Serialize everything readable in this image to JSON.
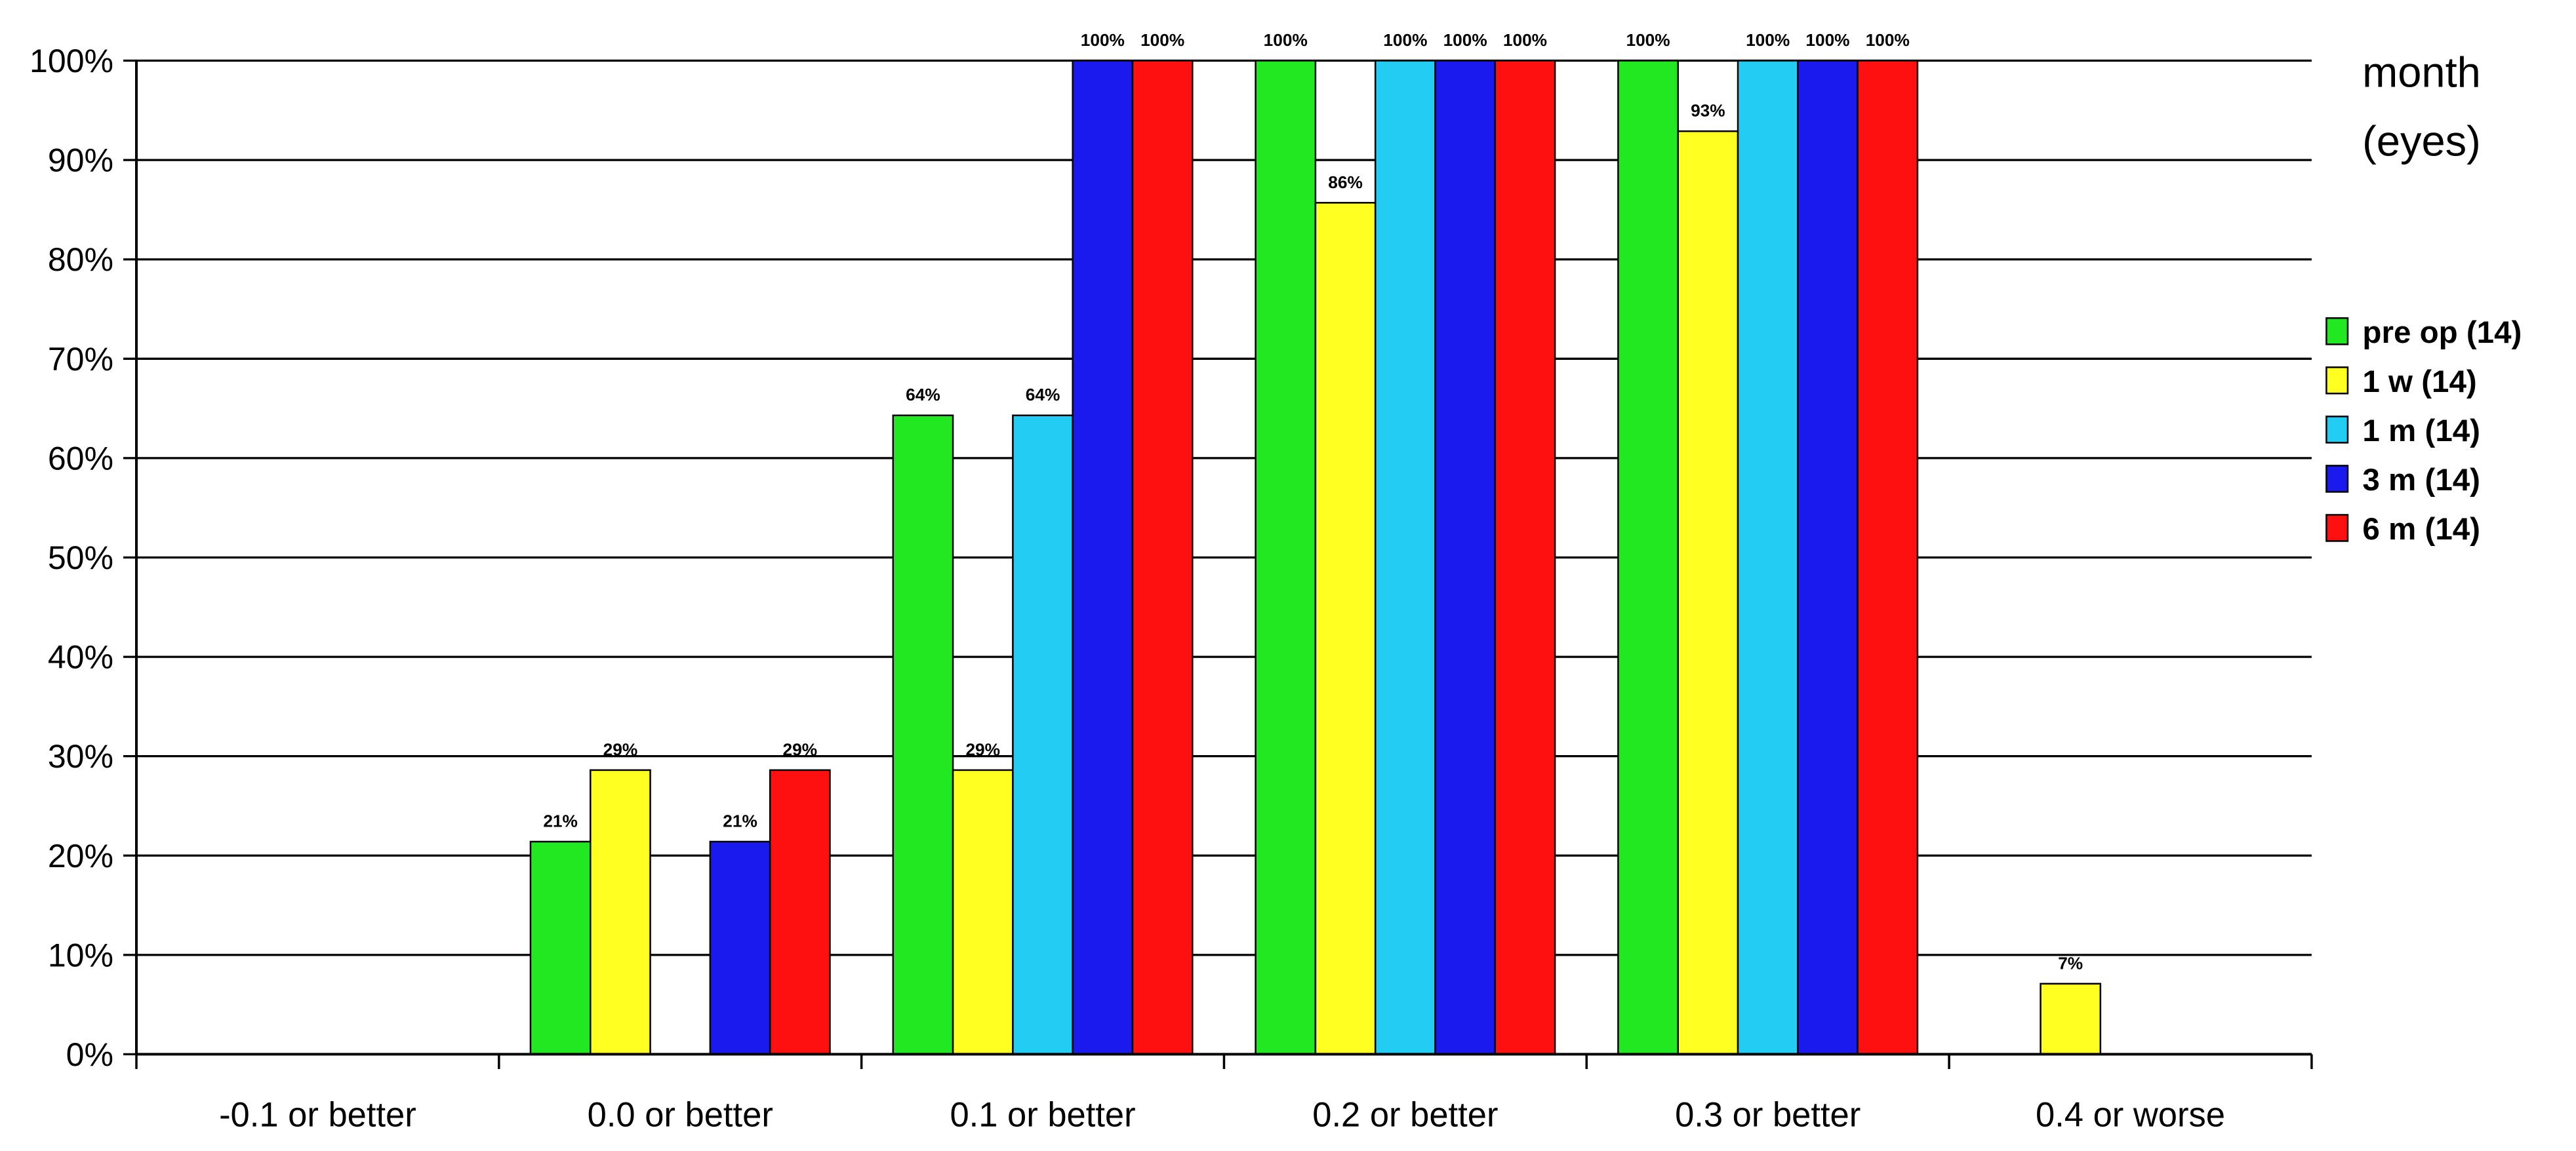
{
  "chart_data": {
    "type": "bar",
    "title": "",
    "xlabel": "",
    "ylabel": "",
    "unit_label_lines": [
      "month",
      "(eyes)"
    ],
    "categories": [
      "-0.1 or better",
      "0.0 or better",
      "0.1 or better",
      "0.2 or better",
      "0.3 or better",
      "0.4 or worse"
    ],
    "ylim": [
      0,
      100
    ],
    "yticks": [
      0,
      10,
      20,
      30,
      40,
      50,
      60,
      70,
      80,
      90,
      100
    ],
    "ytick_labels": [
      "0%",
      "10%",
      "20%",
      "30%",
      "40%",
      "50%",
      "60%",
      "70%",
      "80%",
      "90%",
      "100%"
    ],
    "grid": true,
    "legend_position": "right",
    "series": [
      {
        "name": "pre op (14)",
        "color": "#22e822",
        "values": [
          0,
          21.4,
          64.3,
          100,
          100,
          0
        ],
        "labels": [
          "",
          "21%",
          "64%",
          "100%",
          "100%",
          ""
        ]
      },
      {
        "name": "1 w (14)",
        "color": "#ffff22",
        "values": [
          0,
          28.6,
          28.6,
          85.7,
          92.9,
          7.1
        ],
        "labels": [
          "",
          "29%",
          "29%",
          "86%",
          "93%",
          "7%"
        ]
      },
      {
        "name": "1 m (14)",
        "color": "#22ccf2",
        "values": [
          0,
          0,
          64.3,
          100,
          100,
          0
        ],
        "labels": [
          "",
          "",
          "64%",
          "100%",
          "100%",
          ""
        ]
      },
      {
        "name": "3 m (14)",
        "color": "#1a1aee",
        "values": [
          0,
          21.4,
          100,
          100,
          100,
          0
        ],
        "labels": [
          "",
          "21%",
          "100%",
          "100%",
          "100%",
          ""
        ]
      },
      {
        "name": "6 m (14)",
        "color": "#ff1010",
        "values": [
          0,
          28.6,
          100,
          100,
          100,
          0
        ],
        "labels": [
          "",
          "29%",
          "100%",
          "100%",
          "100%",
          ""
        ]
      }
    ]
  }
}
